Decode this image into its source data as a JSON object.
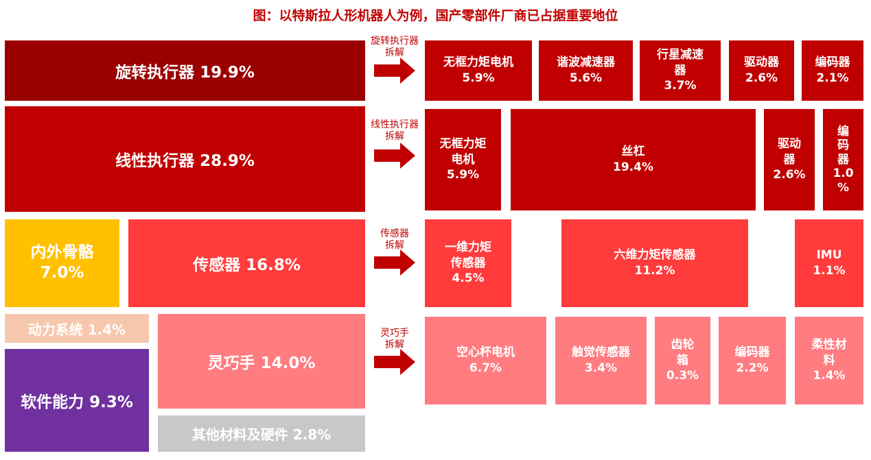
{
  "title": "图：以特斯拉人形机器人为例，国产零部件厂商已占据重要地位",
  "left": {
    "rotary": "旋转执行器  19.9%",
    "linear": "线性执行器  28.9%",
    "skeleton_name": "内外骨骼",
    "skeleton_pct": "7.0%",
    "sensor": "传感器  16.8%",
    "power": "动力系统  1.4%",
    "hand": "灵巧手  14.0%",
    "software": "软件能力  9.3%",
    "other": "其他材料及硬件  2.8%"
  },
  "labels": {
    "rotary": [
      "旋转执行器",
      "拆解"
    ],
    "linear": [
      "线性执行器",
      "拆解"
    ],
    "sensor": [
      "传感器",
      "拆解"
    ],
    "hand": [
      "灵巧手",
      "拆解"
    ]
  },
  "rotary_parts": [
    {
      "lines": [
        "无框力矩电机",
        "5.9%"
      ]
    },
    {
      "lines": [
        "谐波减速器",
        "5.6%"
      ]
    },
    {
      "lines": [
        "行星减速",
        "器",
        "3.7%"
      ]
    },
    {
      "lines": [
        "驱动器",
        "2.6%"
      ]
    },
    {
      "lines": [
        "编码器",
        "2.1%"
      ]
    }
  ],
  "linear_parts": [
    {
      "lines": [
        "无框力矩",
        "电机",
        "5.9%"
      ]
    },
    {
      "lines": [
        "丝杠",
        "19.4%"
      ]
    },
    {
      "lines": [
        "驱动",
        "器",
        "2.6%"
      ]
    },
    {
      "lines": [
        "编",
        "码",
        "器",
        "1.0",
        "%"
      ]
    }
  ],
  "sensor_parts": [
    {
      "lines": [
        "一维力矩",
        "传感器",
        "4.5%"
      ]
    },
    {
      "lines": [
        "六维力矩传感器",
        "11.2%"
      ]
    },
    {
      "lines": [
        "IMU",
        "1.1%"
      ]
    }
  ],
  "hand_parts": [
    {
      "lines": [
        "空心杯电机",
        "6.7%"
      ]
    },
    {
      "lines": [
        "触觉传感器",
        "3.4%"
      ]
    },
    {
      "lines": [
        "齿轮",
        "箱",
        "0.3%"
      ]
    },
    {
      "lines": [
        "编码器",
        "2.2%"
      ]
    },
    {
      "lines": [
        "柔性材",
        "料",
        "1.4%"
      ]
    }
  ],
  "colors": {
    "rotary": "#9b0000",
    "linear": "#c00000",
    "sensor": "#ff3b3b",
    "hand": "#ff7c80",
    "skeleton": "#ffc000",
    "power": "#f7c7ad",
    "software": "#7030a0",
    "other": "#c8c8c8"
  }
}
